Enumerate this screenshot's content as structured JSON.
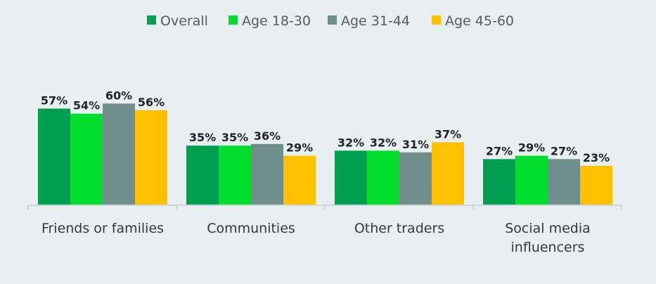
{
  "chart_data": {
    "type": "bar",
    "categories": [
      [
        "Friends or families"
      ],
      [
        "Communities"
      ],
      [
        "Other traders"
      ],
      [
        "Social media",
        "influencers"
      ]
    ],
    "series": [
      {
        "name": "Overall",
        "values": [
          57,
          35,
          32,
          27
        ],
        "color": "#009e4f"
      },
      {
        "name": "Age 18-30",
        "values": [
          54,
          35,
          32,
          29
        ],
        "color": "#00dd2c"
      },
      {
        "name": "Age 31-44",
        "values": [
          60,
          36,
          31,
          27
        ],
        "color": "#6f8e8c"
      },
      {
        "name": "Age 45-60",
        "values": [
          56,
          29,
          37,
          23
        ],
        "color": "#ffc000"
      }
    ],
    "value_suffix": "%",
    "ylim": [
      0,
      60
    ],
    "legend_position": "top-center",
    "grid": false
  }
}
